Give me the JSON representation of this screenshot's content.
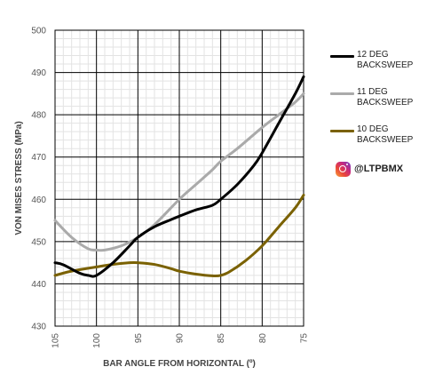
{
  "chart_data": {
    "type": "line",
    "xlabel": "BAR ANGLE FROM HORIZONTAL (º)",
    "ylabel": "VON MISES STRESS (MPa)",
    "xlim": [
      105,
      75
    ],
    "ylim": [
      430,
      500
    ],
    "x_ticks": [
      "105",
      "100",
      "95",
      "90",
      "85",
      "80",
      "75"
    ],
    "y_ticks": [
      "430",
      "440",
      "450",
      "460",
      "470",
      "480",
      "490",
      "500"
    ],
    "grid": true,
    "legend_position": "right",
    "series": [
      {
        "name": "12 DEG BACKSWEEP",
        "color": "#000000",
        "x": [
          105,
          104,
          102,
          101,
          100,
          98,
          96,
          95,
          93,
          91,
          90,
          88,
          86,
          85,
          83,
          81,
          80,
          78,
          76,
          75
        ],
        "y": [
          445,
          444.5,
          442.5,
          442,
          442,
          445,
          449,
          451,
          453.5,
          455.2,
          456,
          457.5,
          458.6,
          460,
          463.5,
          468,
          471,
          478,
          485,
          489
        ]
      },
      {
        "name": "11 DEG BACKSWEEP",
        "color": "#aaaaaa",
        "x": [
          105,
          103,
          101,
          100,
          99,
          97,
          95,
          93,
          90,
          88,
          86,
          85,
          83,
          80,
          78,
          76,
          75
        ],
        "y": [
          455,
          451,
          448.3,
          448,
          448,
          449,
          451,
          454,
          460,
          463.5,
          467,
          469,
          472,
          477,
          480,
          483,
          485
        ]
      },
      {
        "name": "10 DEG BACKSWEEP",
        "color": "#7a6100",
        "x": [
          105,
          103,
          100,
          98,
          96,
          95,
          93,
          91,
          90,
          88,
          86,
          85,
          84,
          82,
          80,
          78,
          76,
          75
        ],
        "y": [
          442,
          443,
          444,
          444.6,
          445,
          445,
          444.6,
          443.6,
          443,
          442.3,
          441.9,
          442,
          442.8,
          445.5,
          449,
          453.5,
          458,
          461
        ]
      }
    ]
  },
  "legend": {
    "items": [
      {
        "line1": "12 DEG",
        "line2": "BACKSWEEP",
        "color": "#000000"
      },
      {
        "line1": "11 DEG",
        "line2": "BACKSWEEP",
        "color": "#aaaaaa"
      },
      {
        "line1": "10 DEG",
        "line2": "BACKSWEEP",
        "color": "#7a6100"
      }
    ]
  },
  "watermark": {
    "icon": "instagram-icon",
    "handle": "@LTPBMX"
  }
}
